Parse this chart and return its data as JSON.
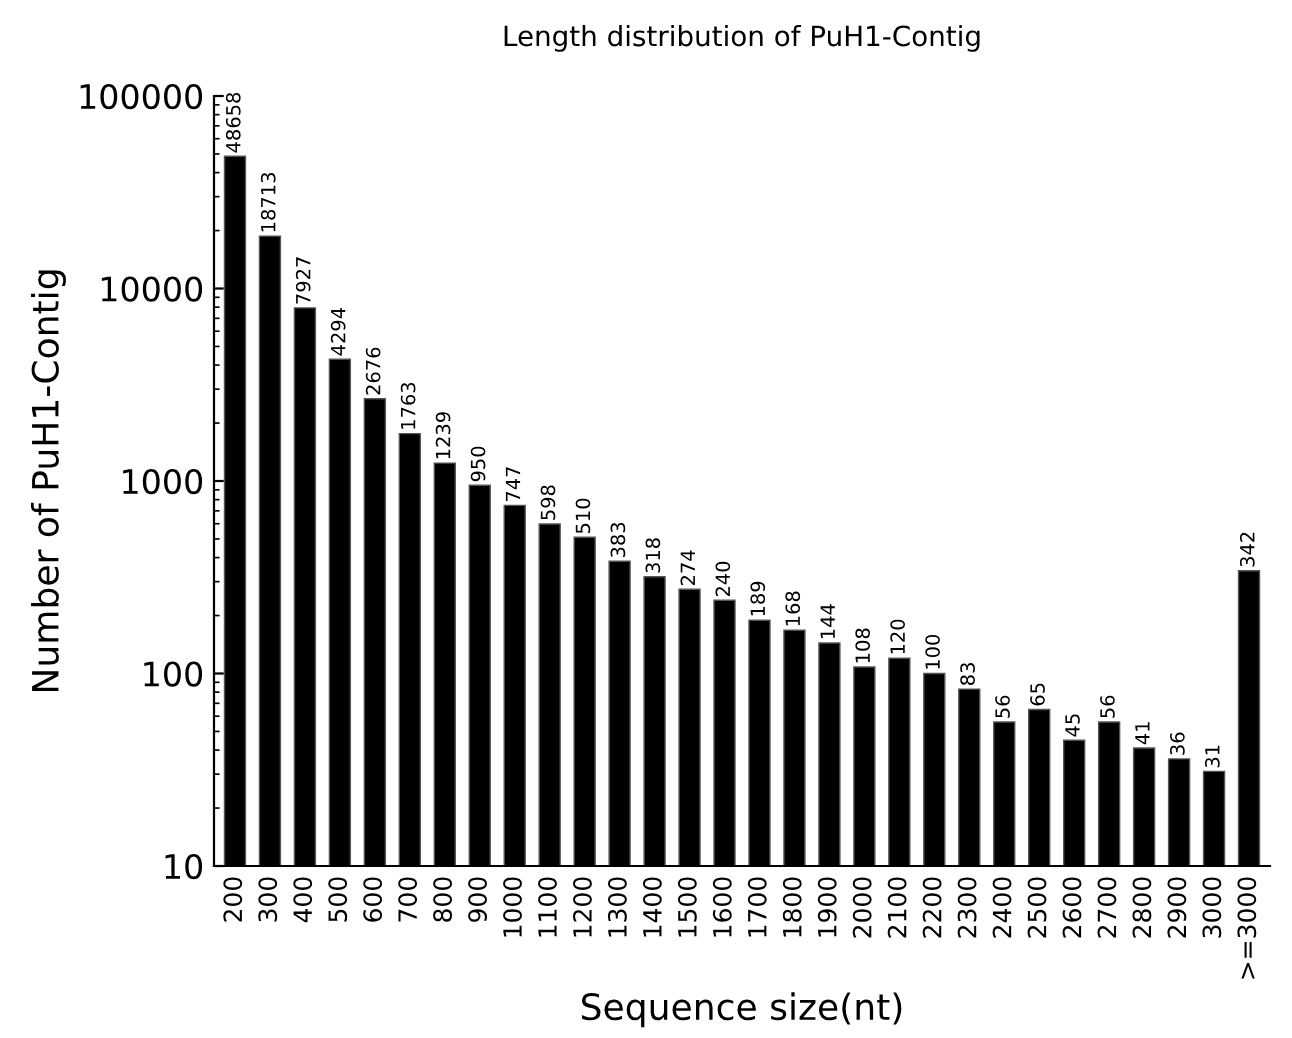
{
  "chart_data": {
    "type": "bar",
    "title": "Length distribution of PuH1-Contig",
    "xlabel": "Sequence size(nt)",
    "ylabel": "Number of PuH1-Contig",
    "categories": [
      "200",
      "300",
      "400",
      "500",
      "600",
      "700",
      "800",
      "900",
      "1000",
      "1100",
      "1200",
      "1300",
      "1400",
      "1500",
      "1600",
      "1700",
      "1800",
      "1900",
      "2000",
      "2100",
      "2200",
      "2300",
      "2400",
      "2500",
      "2600",
      "2700",
      "2800",
      "2900",
      "3000",
      ">=3000"
    ],
    "values": [
      48658,
      18713,
      7927,
      4294,
      2676,
      1763,
      1239,
      950,
      747,
      598,
      510,
      383,
      318,
      274,
      240,
      189,
      168,
      144,
      108,
      120,
      100,
      83,
      56,
      65,
      45,
      56,
      41,
      36,
      31,
      342
    ],
    "color": "#000000",
    "log": "y",
    "ylim": [
      10,
      100000
    ],
    "yticks": [
      10,
      100,
      1000,
      10000,
      100000
    ],
    "data_labels": true,
    "grid": false
  }
}
